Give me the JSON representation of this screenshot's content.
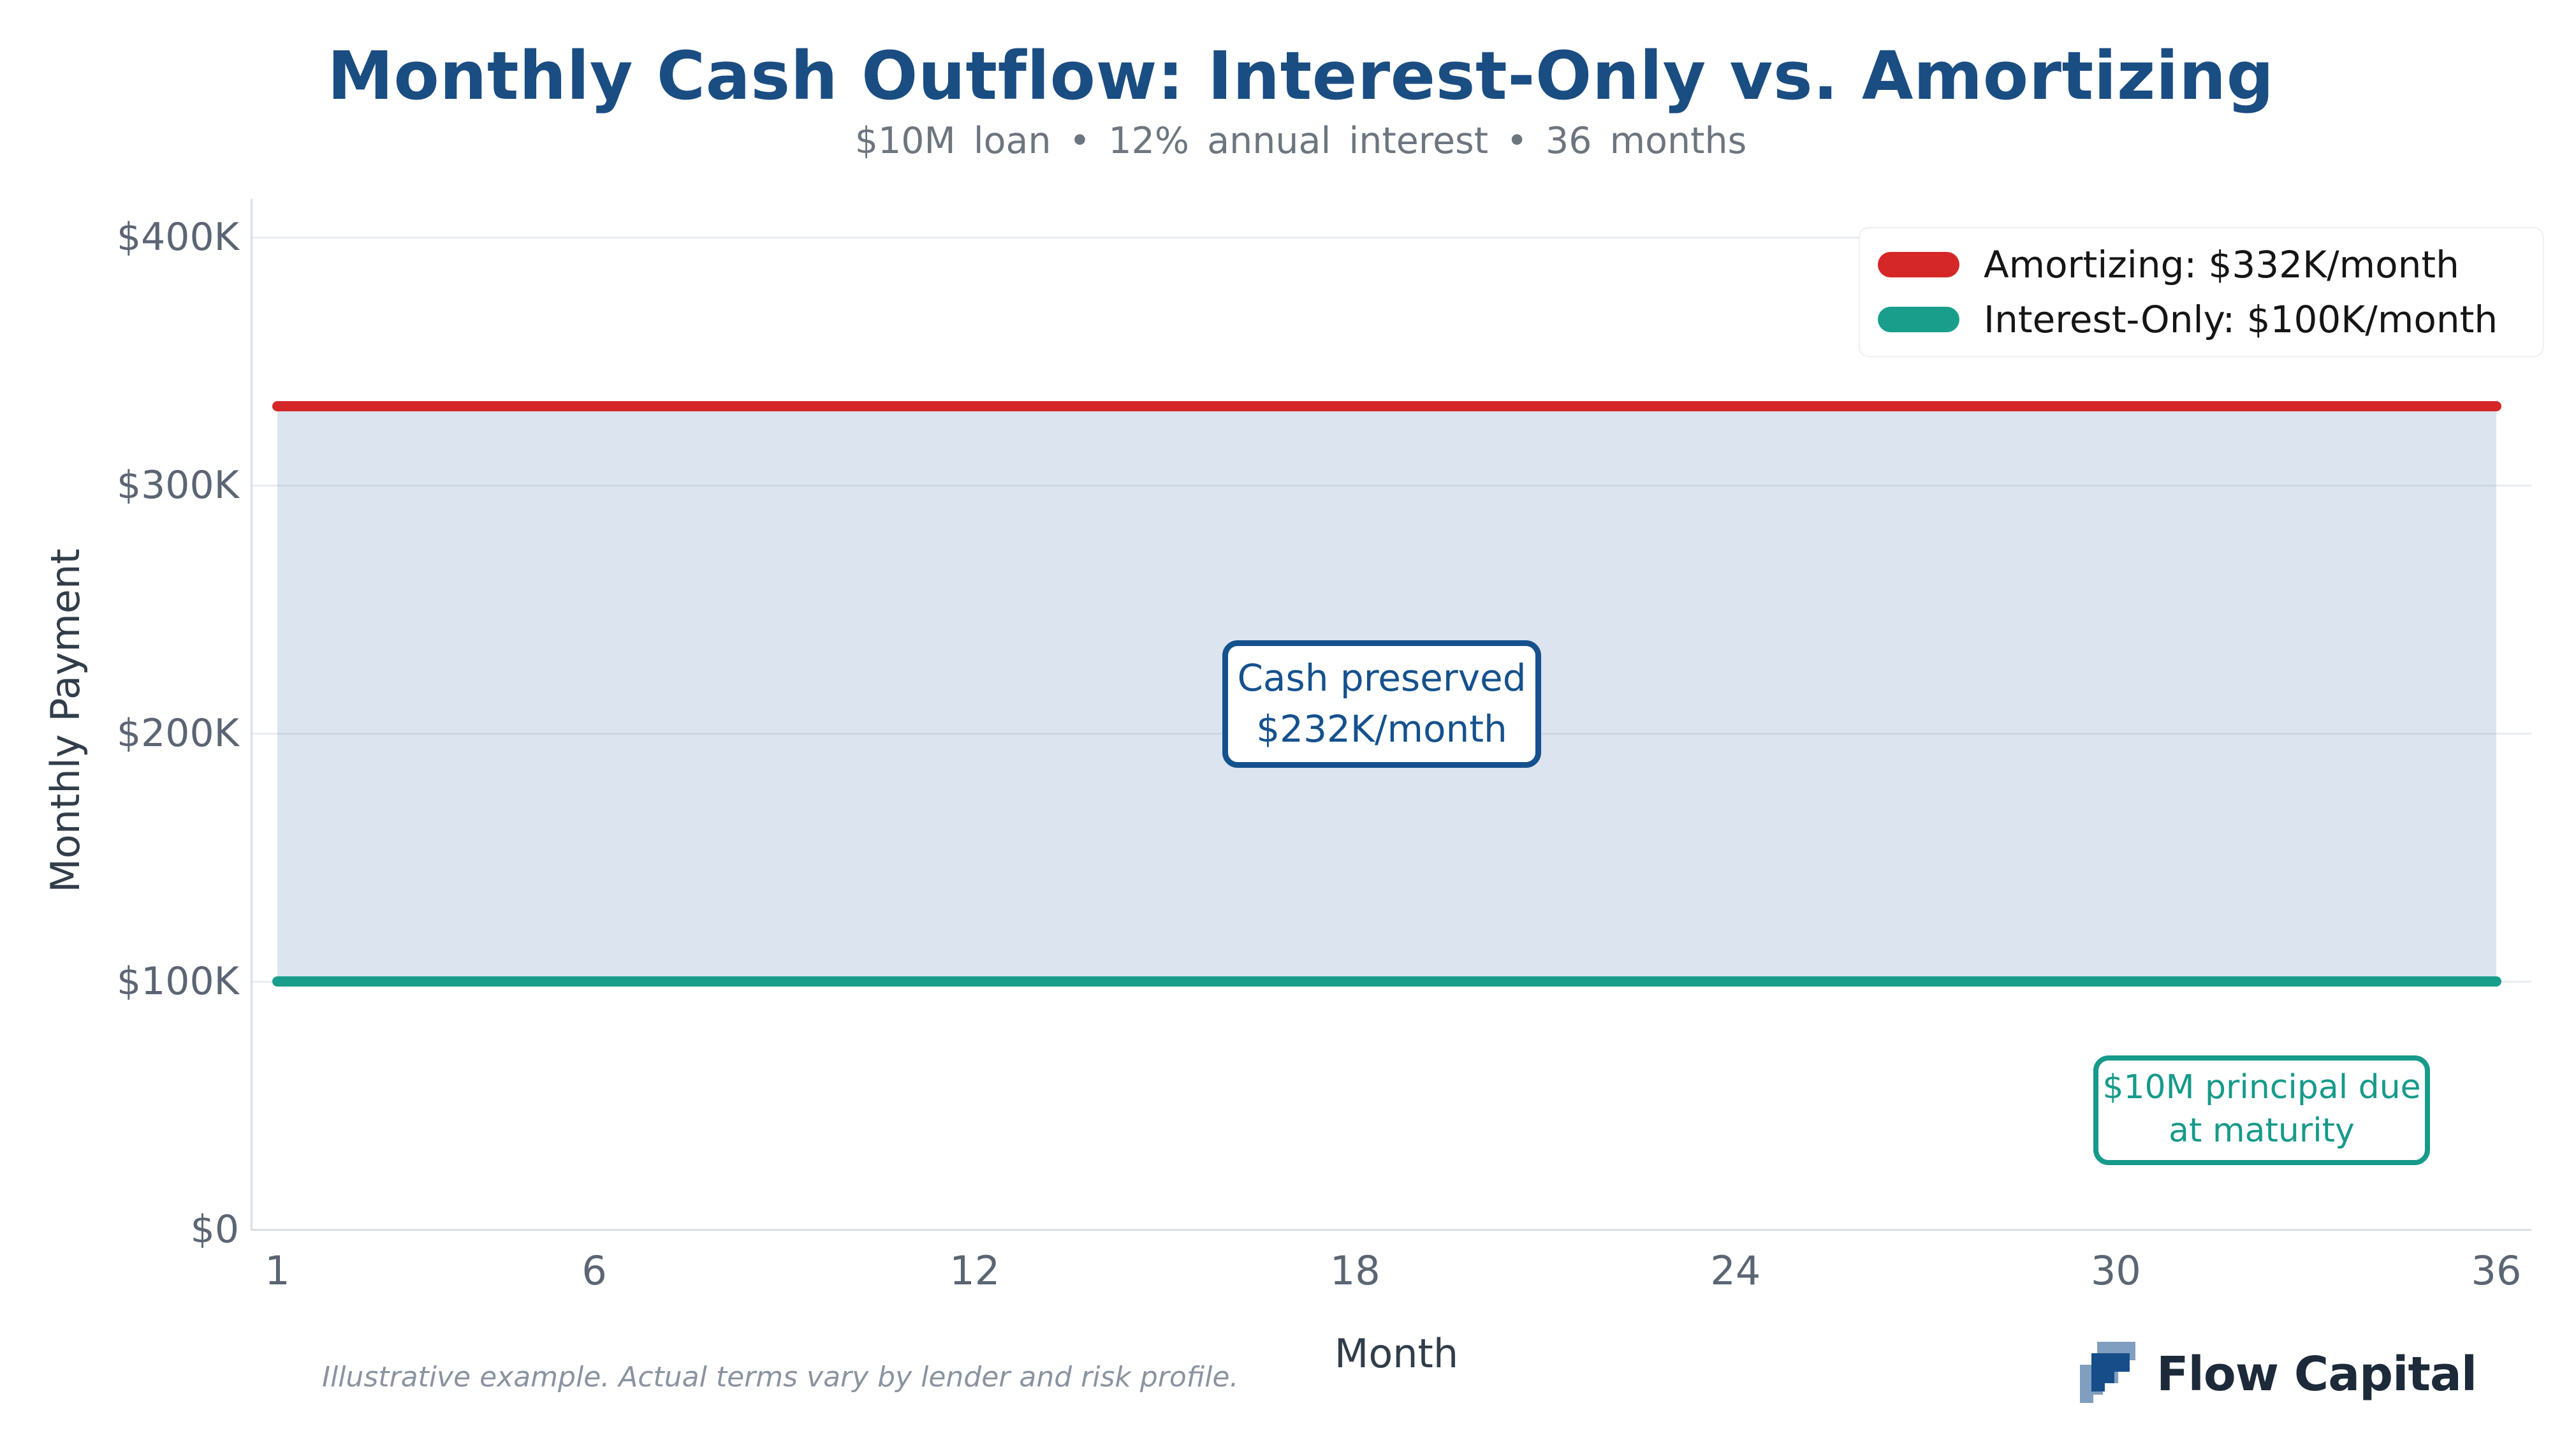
{
  "header": {
    "title": "Monthly Cash Outflow: Interest-Only vs. Amortizing",
    "subtitle": "$10M loan  •  12% annual interest  •  36 months"
  },
  "chart_data": {
    "type": "line",
    "title": "Monthly Cash Outflow: Interest-Only vs. Amortizing",
    "subtitle": "$10M loan • 12% annual interest • 36 months",
    "xlabel": "Month",
    "ylabel": "Monthly Payment",
    "x_range": [
      1,
      36
    ],
    "x_ticks": [
      1,
      6,
      12,
      18,
      24,
      30,
      36
    ],
    "y_ticks": [
      {
        "label": "$0",
        "value": 0
      },
      {
        "label": "$100K",
        "value": 100000
      },
      {
        "label": "$200K",
        "value": 200000
      },
      {
        "label": "$300K",
        "value": 300000
      },
      {
        "label": "$400K",
        "value": 400000
      }
    ],
    "ylim": [
      0,
      416000
    ],
    "grid": true,
    "legend_position": "upper right",
    "series": [
      {
        "name": "Amortizing: $332K/month",
        "y_constant": 332000,
        "x_span": [
          1,
          36
        ],
        "color": "#d62728"
      },
      {
        "name": "Interest-Only: $100K/month",
        "y_constant": 100000,
        "x_span": [
          1,
          36
        ],
        "color": "#1a9e8c"
      }
    ],
    "fill_between": {
      "upper": 332000,
      "lower": 100000,
      "color": "rgba(125,155,195,0.27)",
      "meaning": "Cash preserved $232K/month"
    },
    "annotations": [
      {
        "lines": [
          "Cash preserved",
          "$232K/month"
        ],
        "color": "#15518d",
        "x_month": 18,
        "y_value": 214000
      },
      {
        "lines": [
          "$10M principal due",
          "at maturity"
        ],
        "color": "#169a8a",
        "x_month": 32,
        "y_value": 62000
      }
    ]
  },
  "footer": {
    "disclaimer": "Illustrative example. Actual terms vary by lender and risk profile.",
    "brand": "Flow Capital"
  },
  "colors": {
    "title": "#1a4d82",
    "subtitle": "#6d757e",
    "amortizing_red": "#d62728",
    "interest_only_teal": "#1a9e8c",
    "fill_blue_gray": "#dde5ee",
    "logo_dark_blue": "#174e8a",
    "logo_light_blue": "#7f9ebf"
  }
}
